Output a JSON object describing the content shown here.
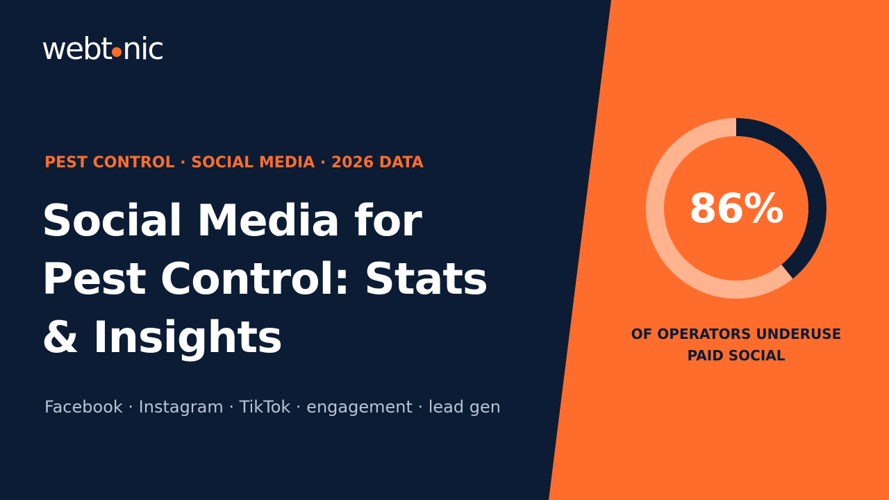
{
  "brand": {
    "logo_part1": "webt",
    "logo_part2": "nic",
    "accent_color": "#ff6d2d",
    "dark_color": "#0c1c34"
  },
  "eyebrow": "PEST CONTROL · SOCIAL MEDIA · 2026 DATA",
  "headline": {
    "line1": "Social Media for",
    "line2": "Pest Control: Stats",
    "line3": "& Insights"
  },
  "tags": "Facebook · Instagram · TikTok · engagement · lead gen",
  "stat": {
    "value_label": "86%",
    "value": 0.86,
    "caption_line1": "OF OPERATORS UNDERUSE",
    "caption_line2": "PAID SOCIAL",
    "ring_color": "#0c1c34",
    "track_color": "#ffb38f"
  }
}
